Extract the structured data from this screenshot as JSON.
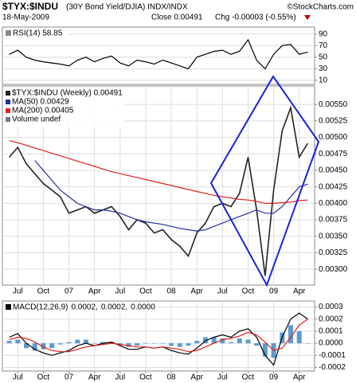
{
  "header": {
    "symbol": "$TYX:$INDU",
    "description": "(30Y Bond Yield/DJIA) INDX/INDX",
    "source": "©StockCharts.com",
    "date": "18-May-2009",
    "close": "Close 0.00491",
    "change": "Chg -0.00003 (-0.55%)"
  },
  "chart_data": [
    {
      "type": "line",
      "grid": true,
      "x": [
        0,
        1,
        2,
        3,
        4,
        5,
        6,
        7,
        8,
        9,
        10,
        11,
        12,
        13,
        14,
        15,
        16,
        17,
        18,
        19,
        20,
        21,
        22,
        23,
        24,
        25,
        26,
        27,
        28,
        29,
        30,
        31,
        32,
        33,
        34,
        35
      ],
      "xlim": [
        -0.8,
        35.8
      ],
      "ylim": [
        3,
        102
      ],
      "yticks": [
        90,
        70,
        50,
        30,
        10
      ],
      "series": [
        {
          "name": "RSI(14) 58.85",
          "color": "#000000",
          "values": [
            55,
            62,
            50,
            45,
            42,
            40,
            38,
            35,
            45,
            50,
            42,
            48,
            52,
            40,
            35,
            45,
            42,
            38,
            45,
            40,
            35,
            30,
            50,
            55,
            60,
            62,
            55,
            60,
            80,
            45,
            30,
            55,
            70,
            72,
            55,
            58.85
          ]
        }
      ]
    },
    {
      "type": "line",
      "grid": true,
      "volume_label": "Volume undef",
      "x": [
        0,
        1,
        2,
        3,
        4,
        5,
        6,
        7,
        8,
        9,
        10,
        11,
        12,
        13,
        14,
        15,
        16,
        17,
        18,
        19,
        20,
        21,
        22,
        23,
        24,
        25,
        26,
        27,
        28,
        29,
        30,
        31,
        32,
        33,
        34,
        35
      ],
      "xlim": [
        -0.8,
        35.8
      ],
      "ylim": [
        0.00276,
        0.00578
      ],
      "yticks": [
        {
          "value": 0.0055,
          "label": "0.00550"
        },
        {
          "value": 0.00525,
          "label": "0.00525"
        },
        {
          "value": 0.005,
          "label": "0.00500"
        },
        {
          "value": 0.00475,
          "label": "0.00475"
        },
        {
          "value": 0.0045,
          "label": "0.00450"
        },
        {
          "value": 0.00425,
          "label": "0.00425"
        },
        {
          "value": 0.004,
          "label": "0.00400"
        },
        {
          "value": 0.00375,
          "label": "0.00375"
        },
        {
          "value": 0.0035,
          "label": "0.00350"
        },
        {
          "value": 0.00325,
          "label": "0.00325"
        },
        {
          "value": 0.003,
          "label": "0.00300"
        }
      ],
      "xticks": [
        {
          "value": 1,
          "label": "Jul"
        },
        {
          "value": 4,
          "label": "Oct"
        },
        {
          "value": 7,
          "label": "07"
        },
        {
          "value": 10,
          "label": "Apr"
        },
        {
          "value": 13,
          "label": "Jul"
        },
        {
          "value": 16,
          "label": "Oct"
        },
        {
          "value": 19,
          "label": "08"
        },
        {
          "value": 22,
          "label": "Apr"
        },
        {
          "value": 25,
          "label": "Jul"
        },
        {
          "value": 28,
          "label": "Oct"
        },
        {
          "value": 31,
          "label": "09"
        },
        {
          "value": 34,
          "label": "Apr"
        }
      ],
      "series": [
        {
          "name": "$TYX:$INDU (Weekly) 0.00491",
          "color": "#222222",
          "values": [
            0.0047,
            0.00485,
            0.0046,
            0.00445,
            0.0043,
            0.0042,
            0.0041,
            0.00385,
            0.0039,
            0.00395,
            0.00385,
            0.0039,
            0.00395,
            0.0038,
            0.0036,
            0.00375,
            0.0037,
            0.00355,
            0.0036,
            0.00345,
            0.00335,
            0.0032,
            0.00355,
            0.0037,
            0.00395,
            0.004,
            0.00395,
            0.00415,
            0.0047,
            0.0039,
            0.0029,
            0.0042,
            0.0051,
            0.00545,
            0.0047,
            0.00491
          ]
        },
        {
          "name": "MA(50) 0.00429",
          "color": "#1f2fa0",
          "values": [
            null,
            null,
            null,
            0.00465,
            0.0045,
            0.00435,
            0.0042,
            0.0041,
            0.004,
            0.00395,
            0.0039,
            0.0039,
            0.00388,
            0.00385,
            0.0038,
            0.00375,
            0.00372,
            0.0037,
            0.00368,
            0.00365,
            0.00362,
            0.0036,
            0.00358,
            0.0036,
            0.00365,
            0.0037,
            0.00375,
            0.0038,
            0.00385,
            0.0039,
            0.00385,
            0.00385,
            0.00395,
            0.0041,
            0.00425,
            0.00429
          ]
        },
        {
          "name": "MA(200) 0.00405",
          "color": "#e02020",
          "values": [
            0.00495,
            0.00492,
            0.00488,
            0.00484,
            0.0048,
            0.00476,
            0.00472,
            0.00468,
            0.00464,
            0.0046,
            0.00456,
            0.00452,
            0.00448,
            0.00445,
            0.00442,
            0.00439,
            0.00436,
            0.00433,
            0.0043,
            0.00427,
            0.00424,
            0.00421,
            0.00418,
            0.00415,
            0.00412,
            0.0041,
            0.00408,
            0.00406,
            0.00405,
            0.00403,
            0.004,
            0.004,
            0.00401,
            0.00402,
            0.00404,
            0.00405
          ]
        }
      ]
    },
    {
      "type": "line",
      "grid": true,
      "legend_label": "MACD(12,26,9)",
      "x": [
        0,
        1,
        2,
        3,
        4,
        5,
        6,
        7,
        8,
        9,
        10,
        11,
        12,
        13,
        14,
        15,
        16,
        17,
        18,
        19,
        20,
        21,
        22,
        23,
        24,
        25,
        26,
        27,
        28,
        29,
        30,
        31,
        32,
        33,
        34,
        35
      ],
      "xlim": [
        -0.8,
        35.8
      ],
      "ylim": [
        -0.00023,
        0.00035
      ],
      "yticks": [
        0.0003,
        0.0002,
        0.0001,
        {
          "value": 0,
          "label": "0.0000"
        },
        -0.0001,
        -0.0002
      ],
      "xticks": [
        {
          "value": 1,
          "label": "Jul"
        },
        {
          "value": 4,
          "label": "Oct"
        },
        {
          "value": 7,
          "label": "07"
        },
        {
          "value": 10,
          "label": "Apr"
        },
        {
          "value": 13,
          "label": "Jul"
        },
        {
          "value": 16,
          "label": "Oct"
        },
        {
          "value": 19,
          "label": "08"
        },
        {
          "value": 22,
          "label": "Apr"
        },
        {
          "value": 25,
          "label": "Jul"
        },
        {
          "value": 28,
          "label": "Oct"
        },
        {
          "value": 31,
          "label": "09"
        },
        {
          "value": 34,
          "label": "Apr"
        }
      ],
      "series": [
        {
          "name": "0.0000",
          "color": "#5b9bd0",
          "style": "histogram",
          "values": [
            2e-05,
            3e-05,
            -4e-05,
            -6e-05,
            -5e-05,
            -4e-05,
            -1e-05,
            1e-05,
            3e-05,
            3e-05,
            0,
            1e-05,
            1e-05,
            -1e-05,
            -3e-05,
            -2e-05,
            0,
            0,
            0,
            -2e-05,
            -3e-05,
            -2e-05,
            2e-05,
            5e-05,
            5e-05,
            4e-05,
            1e-05,
            4e-05,
            3e-05,
            -2e-05,
            -0.00011,
            -0.00012,
            9e-05,
            0.00015,
            0.0001,
            0
          ]
        },
        {
          "name": "0.0002,",
          "color": "#000000",
          "values": [
            5e-05,
            8e-05,
            0,
            -5e-05,
            -8e-05,
            -0.0001,
            -8e-05,
            -6e-05,
            -2e-05,
            0,
            -2e-05,
            0,
            1e-05,
            -2e-05,
            -5e-05,
            -5e-05,
            -3e-05,
            -4e-05,
            -3e-05,
            -6e-05,
            -8e-05,
            -9e-05,
            -4e-05,
            2e-05,
            5e-05,
            7e-05,
            5e-05,
            0.0001,
            0.00012,
            5e-05,
            -0.0001,
            -0.00018,
            5e-05,
            0.0002,
            0.00025,
            0.0002
          ]
        },
        {
          "name": "0.0002,",
          "color": "#e02020",
          "values": [
            3e-05,
            5e-05,
            4e-05,
            1e-05,
            -3e-05,
            -6e-05,
            -7e-05,
            -7e-05,
            -5e-05,
            -3e-05,
            -2e-05,
            -1e-05,
            0,
            -1e-05,
            -2e-05,
            -3e-05,
            -3e-05,
            -4e-05,
            -3e-05,
            -4e-05,
            -5e-05,
            -7e-05,
            -6e-05,
            -3e-05,
            0,
            3e-05,
            4e-05,
            6e-05,
            9e-05,
            7e-05,
            1e-05,
            -6e-05,
            -4e-05,
            5e-05,
            0.00015,
            0.0002
          ]
        }
      ]
    }
  ]
}
